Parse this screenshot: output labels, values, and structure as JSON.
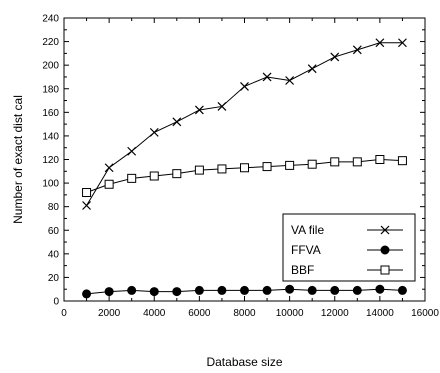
{
  "chart_data": {
    "type": "line",
    "title": "",
    "xlabel": "Database size",
    "ylabel": "Number of exact dist cal",
    "xlim": [
      0,
      16000
    ],
    "ylim": [
      0,
      240
    ],
    "xticks": [
      0,
      2000,
      4000,
      6000,
      8000,
      10000,
      12000,
      14000,
      16000
    ],
    "yticks": [
      0,
      20,
      40,
      60,
      80,
      100,
      120,
      140,
      160,
      180,
      200,
      220,
      240
    ],
    "grid": false,
    "legend_position": "right",
    "x": [
      1000,
      2000,
      3000,
      4000,
      5000,
      6000,
      7000,
      8000,
      9000,
      10000,
      11000,
      12000,
      13000,
      14000,
      15000
    ],
    "series": [
      {
        "name": "VA file",
        "marker": "x",
        "color": "#000000",
        "values": [
          81,
          113,
          127,
          143,
          152,
          162,
          165,
          182,
          190,
          187,
          197,
          207,
          213,
          219,
          219
        ]
      },
      {
        "name": "FFVA",
        "marker": "filled-circle",
        "color": "#000000",
        "values": [
          6,
          8,
          9,
          8,
          8,
          9,
          9,
          9,
          9,
          10,
          9,
          9,
          9,
          10,
          9
        ]
      },
      {
        "name": "BBF",
        "marker": "open-square",
        "color": "#000000",
        "values": [
          92,
          99,
          104,
          106,
          108,
          111,
          112,
          113,
          114,
          115,
          116,
          118,
          118,
          120,
          119
        ]
      }
    ]
  }
}
